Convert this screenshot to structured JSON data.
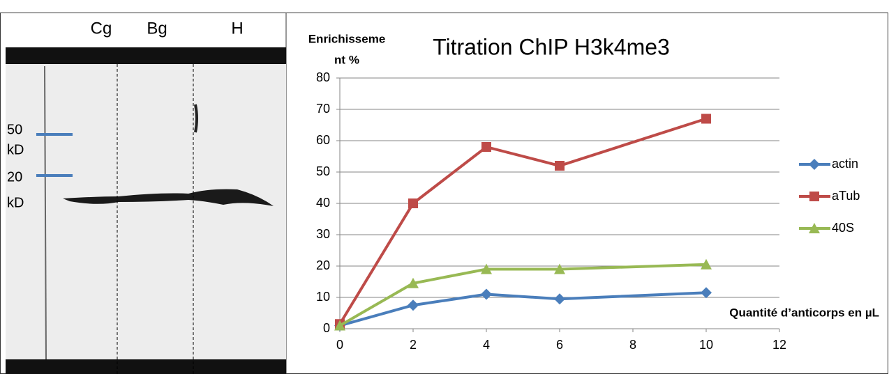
{
  "blot": {
    "lanes": [
      "Cg",
      "Bg",
      "H"
    ],
    "markers": [
      [
        "50",
        "kD"
      ],
      [
        "20",
        "kD"
      ]
    ]
  },
  "chart_data": {
    "type": "line",
    "title": "Titration ChIP H3k4me3",
    "y_label": [
      "Enrichisseme",
      "nt %"
    ],
    "x_label": "Quantité d’anticorps en µL",
    "x": [
      0,
      2,
      4,
      6,
      10
    ],
    "series": [
      {
        "name": "actin",
        "color": "#4a7ebb",
        "marker": "diamond",
        "values": [
          1,
          7.5,
          11,
          9.5,
          11.5
        ]
      },
      {
        "name": "aTub",
        "color": "#be4b48",
        "marker": "square",
        "values": [
          1.5,
          40,
          58,
          52,
          67
        ]
      },
      {
        "name": "40S",
        "color": "#98b954",
        "marker": "triangle",
        "values": [
          1,
          14.5,
          19,
          19,
          20.5
        ]
      }
    ],
    "xlim": [
      0,
      12
    ],
    "xticks": [
      0,
      2,
      4,
      6,
      8,
      10,
      12
    ],
    "ylim": [
      0,
      80
    ],
    "yticks": [
      0,
      10,
      20,
      30,
      40,
      50,
      60,
      70,
      80
    ],
    "grid": true
  }
}
